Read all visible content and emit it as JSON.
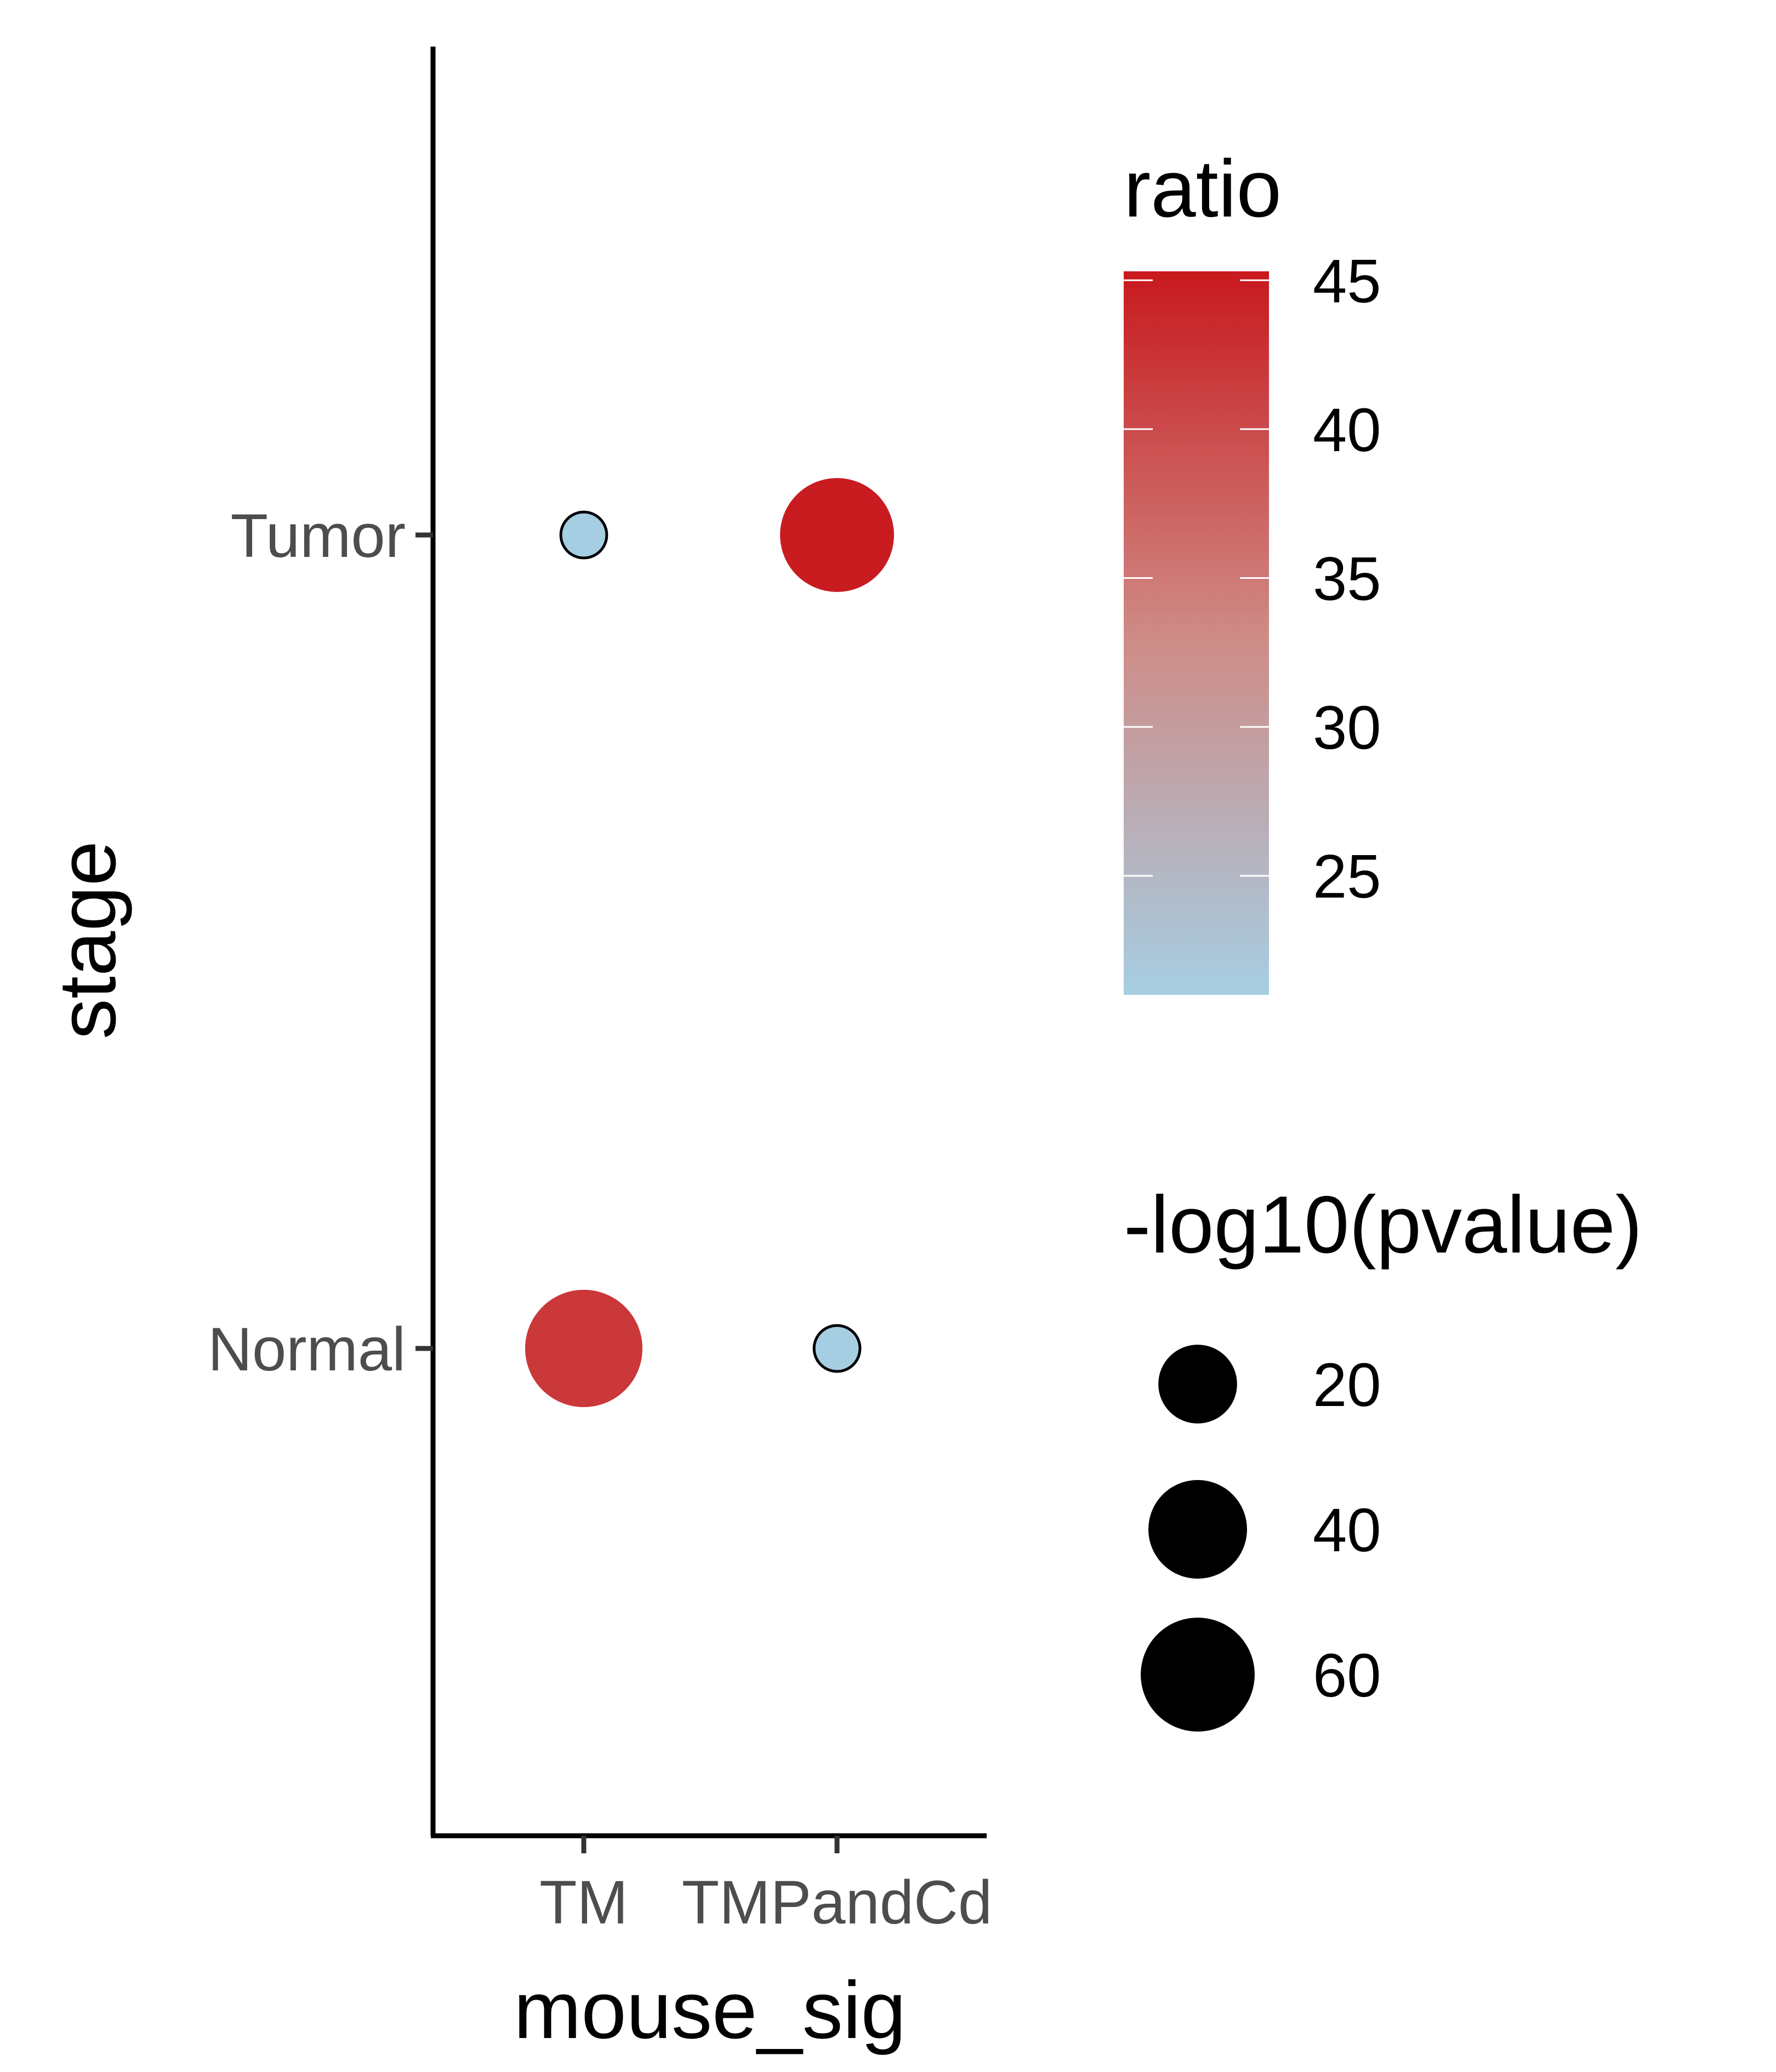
{
  "chart_data": {
    "type": "scatter",
    "xlabel": "mouse_sig",
    "ylabel": "stage",
    "x_categories": [
      "TM",
      "TMPandCd"
    ],
    "y_categories": [
      "Normal",
      "Tumor"
    ],
    "points": [
      {
        "x": "TM",
        "y": "Tumor",
        "ratio": 21,
        "neg_log10_pvalue": 2
      },
      {
        "x": "TMPandCd",
        "y": "Tumor",
        "ratio": 45,
        "neg_log10_pvalue": 60
      },
      {
        "x": "TM",
        "y": "Normal",
        "ratio": 42,
        "neg_log10_pvalue": 65
      },
      {
        "x": "TMPandCd",
        "y": "Normal",
        "ratio": 21,
        "neg_log10_pvalue": 2
      }
    ],
    "color_legend": {
      "title": "ratio",
      "min": 21,
      "max": 45.3,
      "breaks": [
        25,
        30,
        35,
        40,
        45
      ],
      "labels": [
        "25",
        "30",
        "35",
        "40",
        "45"
      ],
      "low_color": "#a6cee3",
      "high_color": "#c8191e"
    },
    "size_legend": {
      "title": "-log10(pvalue)",
      "breaks": [
        20,
        40,
        60
      ],
      "labels": [
        "20",
        "40",
        "60"
      ],
      "color": "#000000"
    },
    "grid": false
  }
}
